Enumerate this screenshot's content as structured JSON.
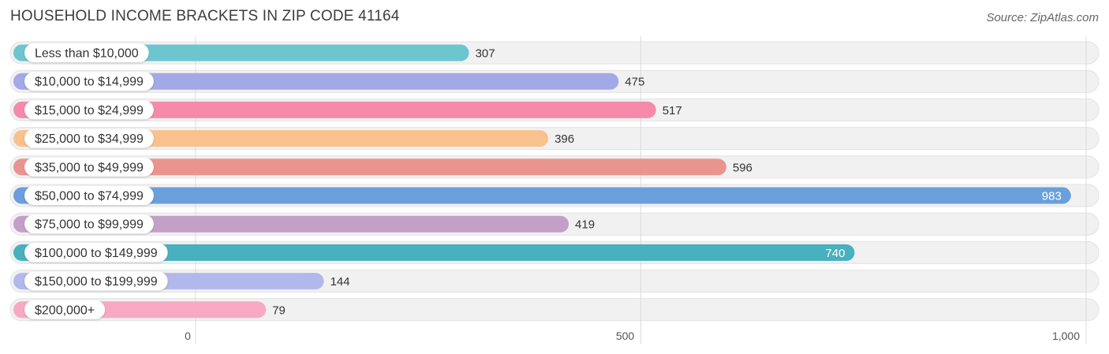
{
  "header": {
    "title": "HOUSEHOLD INCOME BRACKETS IN ZIP CODE 41164",
    "source": "Source: ZipAtlas.com"
  },
  "chart_data": {
    "type": "bar",
    "orientation": "horizontal",
    "title": "HOUSEHOLD INCOME BRACKETS IN ZIP CODE 41164",
    "categories": [
      "Less than $10,000",
      "$10,000 to $14,999",
      "$15,000 to $24,999",
      "$25,000 to $34,999",
      "$35,000 to $49,999",
      "$50,000 to $74,999",
      "$75,000 to $99,999",
      "$100,000 to $149,999",
      "$150,000 to $199,999",
      "$200,000+"
    ],
    "values": [
      307,
      475,
      517,
      396,
      596,
      983,
      419,
      740,
      144,
      79
    ],
    "value_labels": [
      "307",
      "475",
      "517",
      "396",
      "596",
      "983",
      "419",
      "740",
      "144",
      "79"
    ],
    "colors": [
      "#6cc5cf",
      "#a3a8e6",
      "#f68aaa",
      "#f9c18e",
      "#ea9490",
      "#6a9fdc",
      "#c3a0c8",
      "#48b0bf",
      "#b3b8ec",
      "#f7a9c4"
    ],
    "xlim": [
      0,
      1000
    ],
    "xticks": [
      0,
      500,
      1000
    ],
    "xtick_labels": [
      "0",
      "500",
      "1,000"
    ],
    "grid": true,
    "xlabel": "",
    "ylabel": ""
  }
}
